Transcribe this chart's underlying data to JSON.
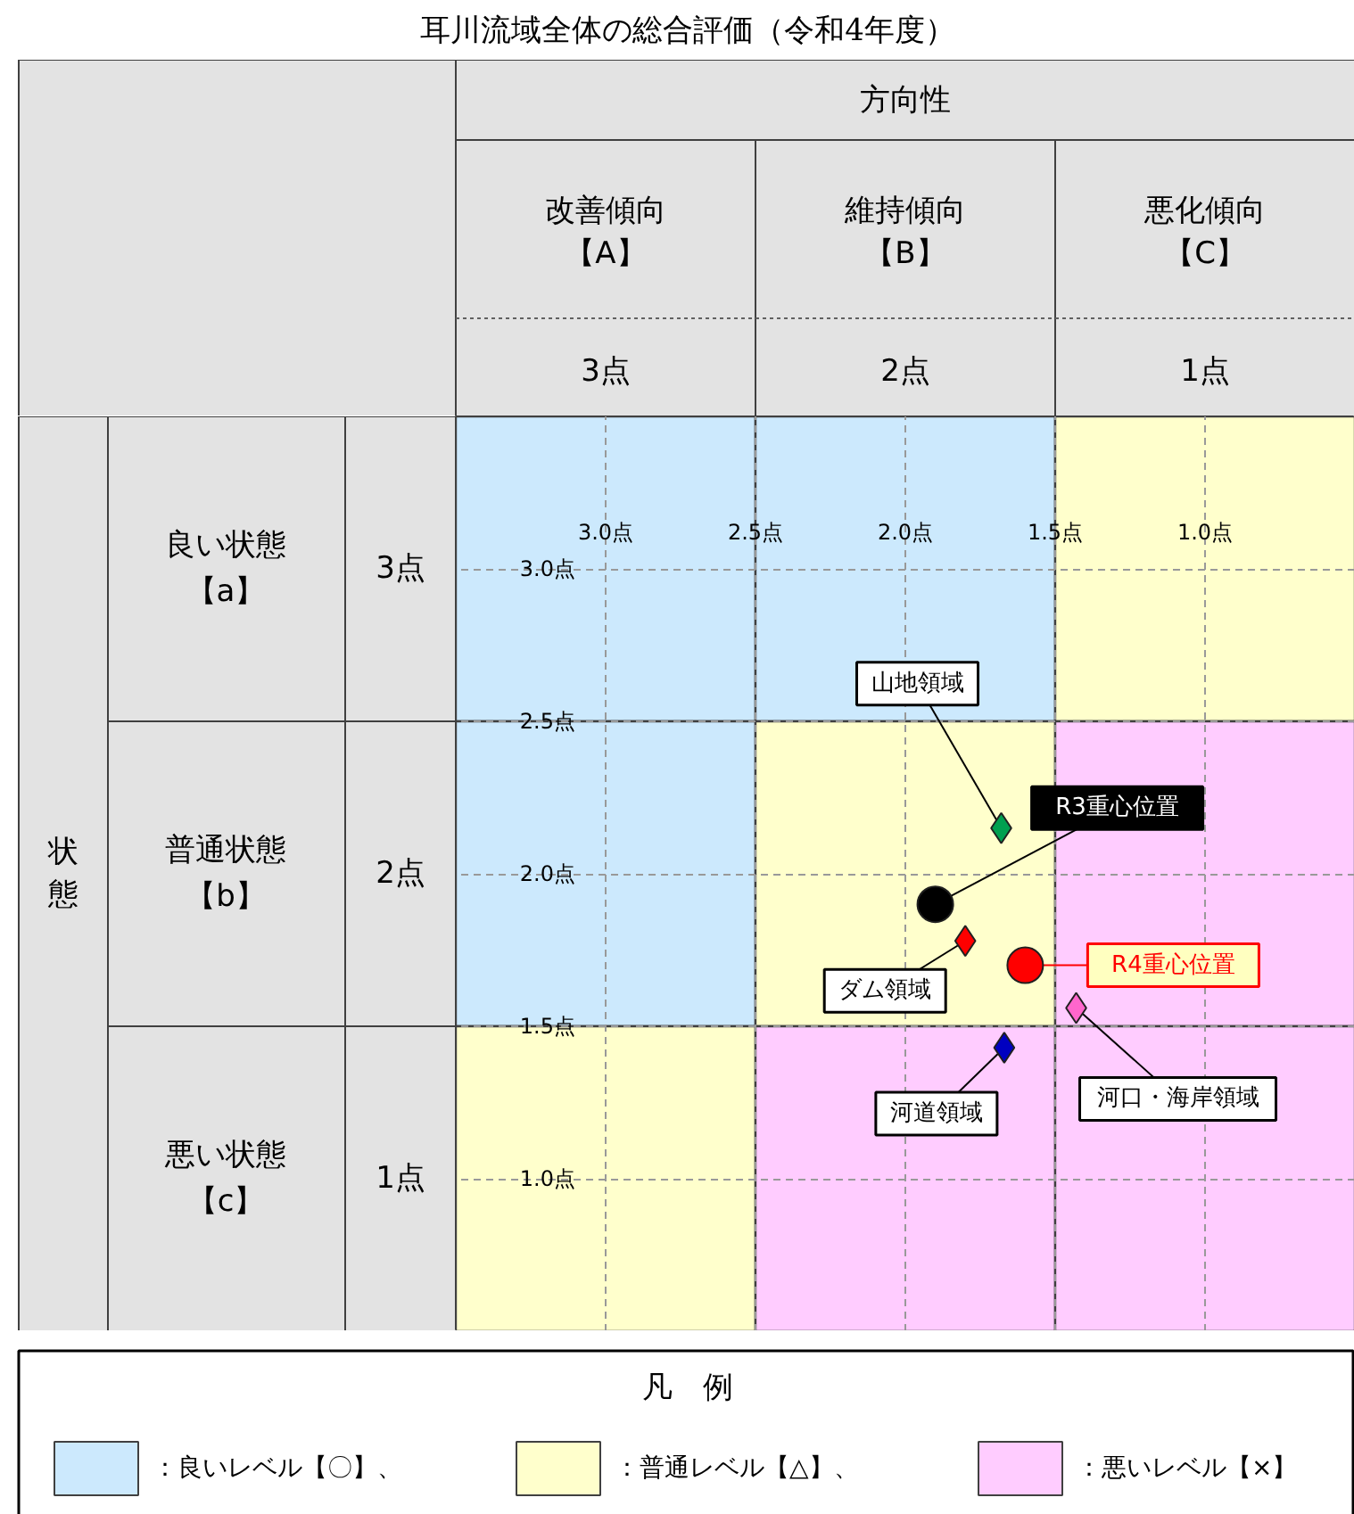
{
  "chart_data": [
    {
      "type": "other",
      "title": "耳川流域全体の総合評価（令和4年度）",
      "xlabel": "方向性",
      "ylabel": "状態",
      "categories": [
        "改善傾向【A】",
        "維持傾向【B】",
        "悪化傾向【C】"
      ],
      "y_categories": [
        "良い状態【a】",
        "普通状態【b】",
        "悪い状態【c】"
      ],
      "y2_categories": [
        "3点",
        "2点",
        "1点"
      ],
      "annotations": [
        "3点",
        "2点",
        "1点"
      ]
    },
    {
      "type": "scatter",
      "xlim": [
        3.5,
        0.5
      ],
      "ylim": [
        0.5,
        3.5
      ],
      "xticks": [
        {
          "value": 3.0,
          "label": "3.0点"
        },
        {
          "value": 2.5,
          "label": "2.5点"
        },
        {
          "value": 2.0,
          "label": "2.0点"
        },
        {
          "value": 1.5,
          "label": "1.5点"
        },
        {
          "value": 1.0,
          "label": "1.0点"
        }
      ],
      "yticks": [
        {
          "value": 3.0,
          "label": "3.0点"
        },
        {
          "value": 2.5,
          "label": "2.5点"
        },
        {
          "value": 2.0,
          "label": "2.0点"
        },
        {
          "value": 1.5,
          "label": "1.5点"
        },
        {
          "value": 1.0,
          "label": "1.0点"
        }
      ],
      "grid": true,
      "legend": "bottom",
      "legend_title": "凡　例",
      "series": [
        {
          "name": "：良いレベル【〇】、",
          "color": "#cce9fd",
          "type": "bar",
          "x": [
            3,
            2
          ],
          "base": [
            2.5,
            2.5
          ],
          "values": [
            1,
            1
          ]
        },
        {
          "color": "#cce9fd",
          "type": "bar",
          "x": [
            3
          ],
          "base": [
            1.5
          ],
          "values": [
            1
          ]
        },
        {
          "name": "：普通レベル【△】、",
          "color": "#ffffcc",
          "type": "bar",
          "x": [
            3,
            2,
            1
          ],
          "base": [
            0.5,
            1.5,
            2.5
          ],
          "values": [
            1,
            1,
            1
          ]
        },
        {
          "name": "：悪いレベル【×】",
          "color": "#ffccff",
          "type": "bar",
          "x": [
            2,
            1
          ],
          "base": [
            0.5,
            1.5
          ],
          "values": [
            1,
            1
          ]
        },
        {
          "color": "#ffccff",
          "type": "bar",
          "x": [
            1
          ],
          "base": [
            0.5
          ],
          "values": [
            1
          ]
        },
        {
          "name": "山地領域",
          "color": "#00a050",
          "marker": "diamond",
          "x": [
            1.68
          ],
          "values": [
            2.15
          ]
        },
        {
          "name": "R3重心位置",
          "color": "#000000",
          "marker": "circle",
          "x": [
            1.9
          ],
          "values": [
            1.9
          ]
        },
        {
          "name": "ダム領域",
          "color": "#ff0000",
          "marker": "diamond",
          "x": [
            1.8
          ],
          "values": [
            1.78
          ]
        },
        {
          "name": "R4重心位置",
          "color": "#ff0000",
          "marker": "circle",
          "x": [
            1.6
          ],
          "values": [
            1.7
          ]
        },
        {
          "name": "河口・海岸領域",
          "color": "#ff66cc",
          "marker": "diamond",
          "x": [
            1.43
          ],
          "values": [
            1.56
          ]
        },
        {
          "name": "河道領域",
          "color": "#0000c0",
          "marker": "diamond",
          "x": [
            1.67
          ],
          "values": [
            1.43
          ]
        }
      ]
    }
  ]
}
